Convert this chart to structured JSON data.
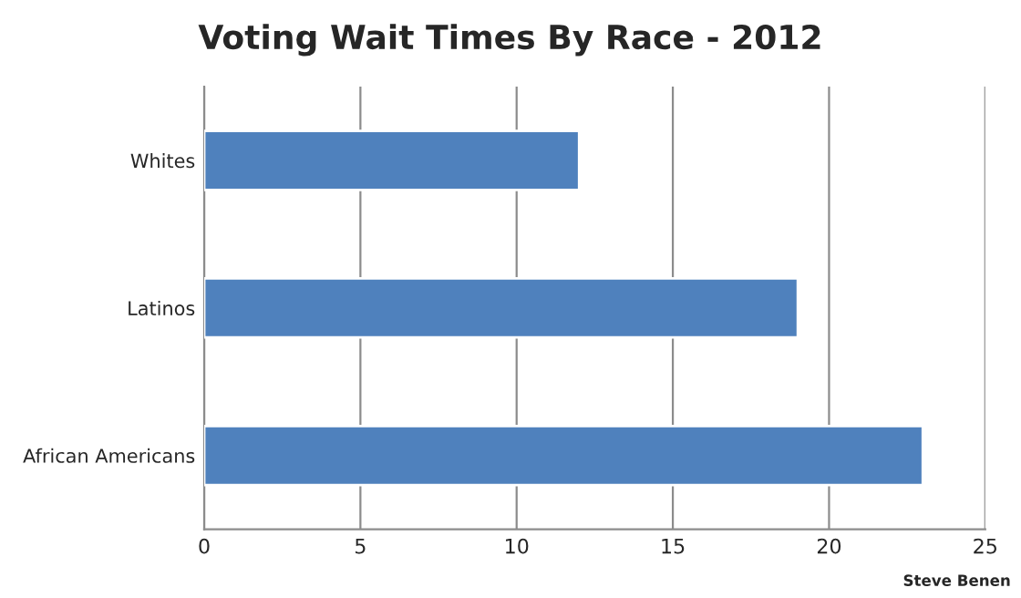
{
  "chart_data": {
    "type": "bar",
    "orientation": "horizontal",
    "title": "Voting Wait Times By Race - 2012",
    "categories": [
      "Whites",
      "Latinos",
      "African Americans"
    ],
    "values": [
      12,
      19,
      23
    ],
    "color": "#4f81bd",
    "xlim": [
      0,
      25
    ],
    "xticks": [
      0,
      5,
      10,
      15,
      20,
      25
    ],
    "grid": "x",
    "annotations": [
      "Steve Benen"
    ]
  }
}
